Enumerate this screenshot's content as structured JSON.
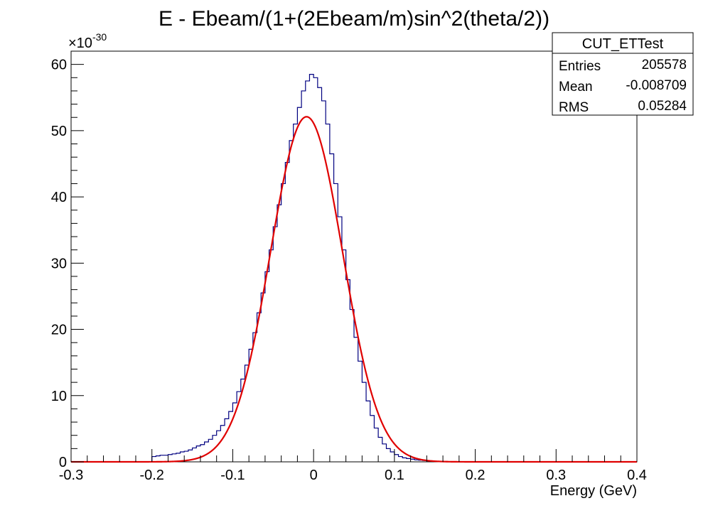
{
  "chart_data": {
    "type": "histogram",
    "title": "E - Ebeam/(1+(2Ebeam/m)sin^2(theta/2))",
    "xlabel": "Energy (GeV)",
    "ylabel": "",
    "y_scale_label": "×10",
    "y_scale_exponent": "-30",
    "xlim": [
      -0.3,
      0.4
    ],
    "ylim": [
      0,
      62
    ],
    "x_ticks": [
      "-0.3",
      "-0.2",
      "-0.1",
      "0",
      "0.1",
      "0.2",
      "0.3",
      "0.4"
    ],
    "y_ticks": [
      "0",
      "10",
      "20",
      "30",
      "40",
      "50",
      "60"
    ],
    "grid": false,
    "colors": {
      "histogram": "#000080",
      "fit": "#e00000"
    },
    "histogram": {
      "bin_start": -0.2,
      "bin_width": 0.005,
      "values": [
        0.8,
        0.9,
        1.0,
        1.0,
        1.1,
        1.2,
        1.3,
        1.5,
        1.6,
        1.8,
        2.1,
        2.4,
        2.6,
        3.0,
        3.4,
        4.0,
        4.7,
        5.5,
        6.5,
        7.6,
        8.9,
        10.6,
        12.5,
        14.6,
        17.0,
        19.5,
        22.5,
        25.5,
        28.7,
        32.0,
        35.5,
        38.8,
        42.0,
        45.2,
        48.5,
        51.0,
        53.5,
        56.0,
        57.5,
        58.5,
        58.0,
        56.5,
        54.5,
        51.0,
        46.5,
        42.0,
        37.0,
        32.0,
        27.5,
        23.0,
        18.8,
        15.2,
        12.0,
        9.2,
        7.0,
        5.1,
        3.7,
        2.7,
        2.0,
        1.5,
        1.1,
        0.8,
        0.6,
        0.5,
        0.4,
        0.3,
        0.25,
        0.2,
        0.15,
        0.1,
        0.08,
        0.05,
        0.05,
        0.03,
        0.03,
        0.02,
        0.02,
        0.01,
        0.01,
        0.0,
        0,
        0,
        0,
        0,
        0,
        0,
        0,
        0,
        0,
        0,
        0,
        0,
        0,
        0,
        0,
        0,
        0,
        0,
        0,
        0,
        0,
        0,
        0,
        0,
        0,
        0,
        0,
        0,
        0,
        0,
        0,
        0,
        0,
        0,
        0,
        0,
        0,
        0,
        0,
        0
      ]
    },
    "fit": {
      "type": "gaussian",
      "amplitude": 52.1,
      "mean": -0.0087,
      "sigma": 0.0447
    }
  },
  "stats": {
    "title": "CUT_ETTest",
    "rows": [
      {
        "label": "Entries",
        "value": "205578"
      },
      {
        "label": "Mean",
        "value": "-0.008709"
      },
      {
        "label": "RMS",
        "value": "0.05284"
      }
    ]
  }
}
